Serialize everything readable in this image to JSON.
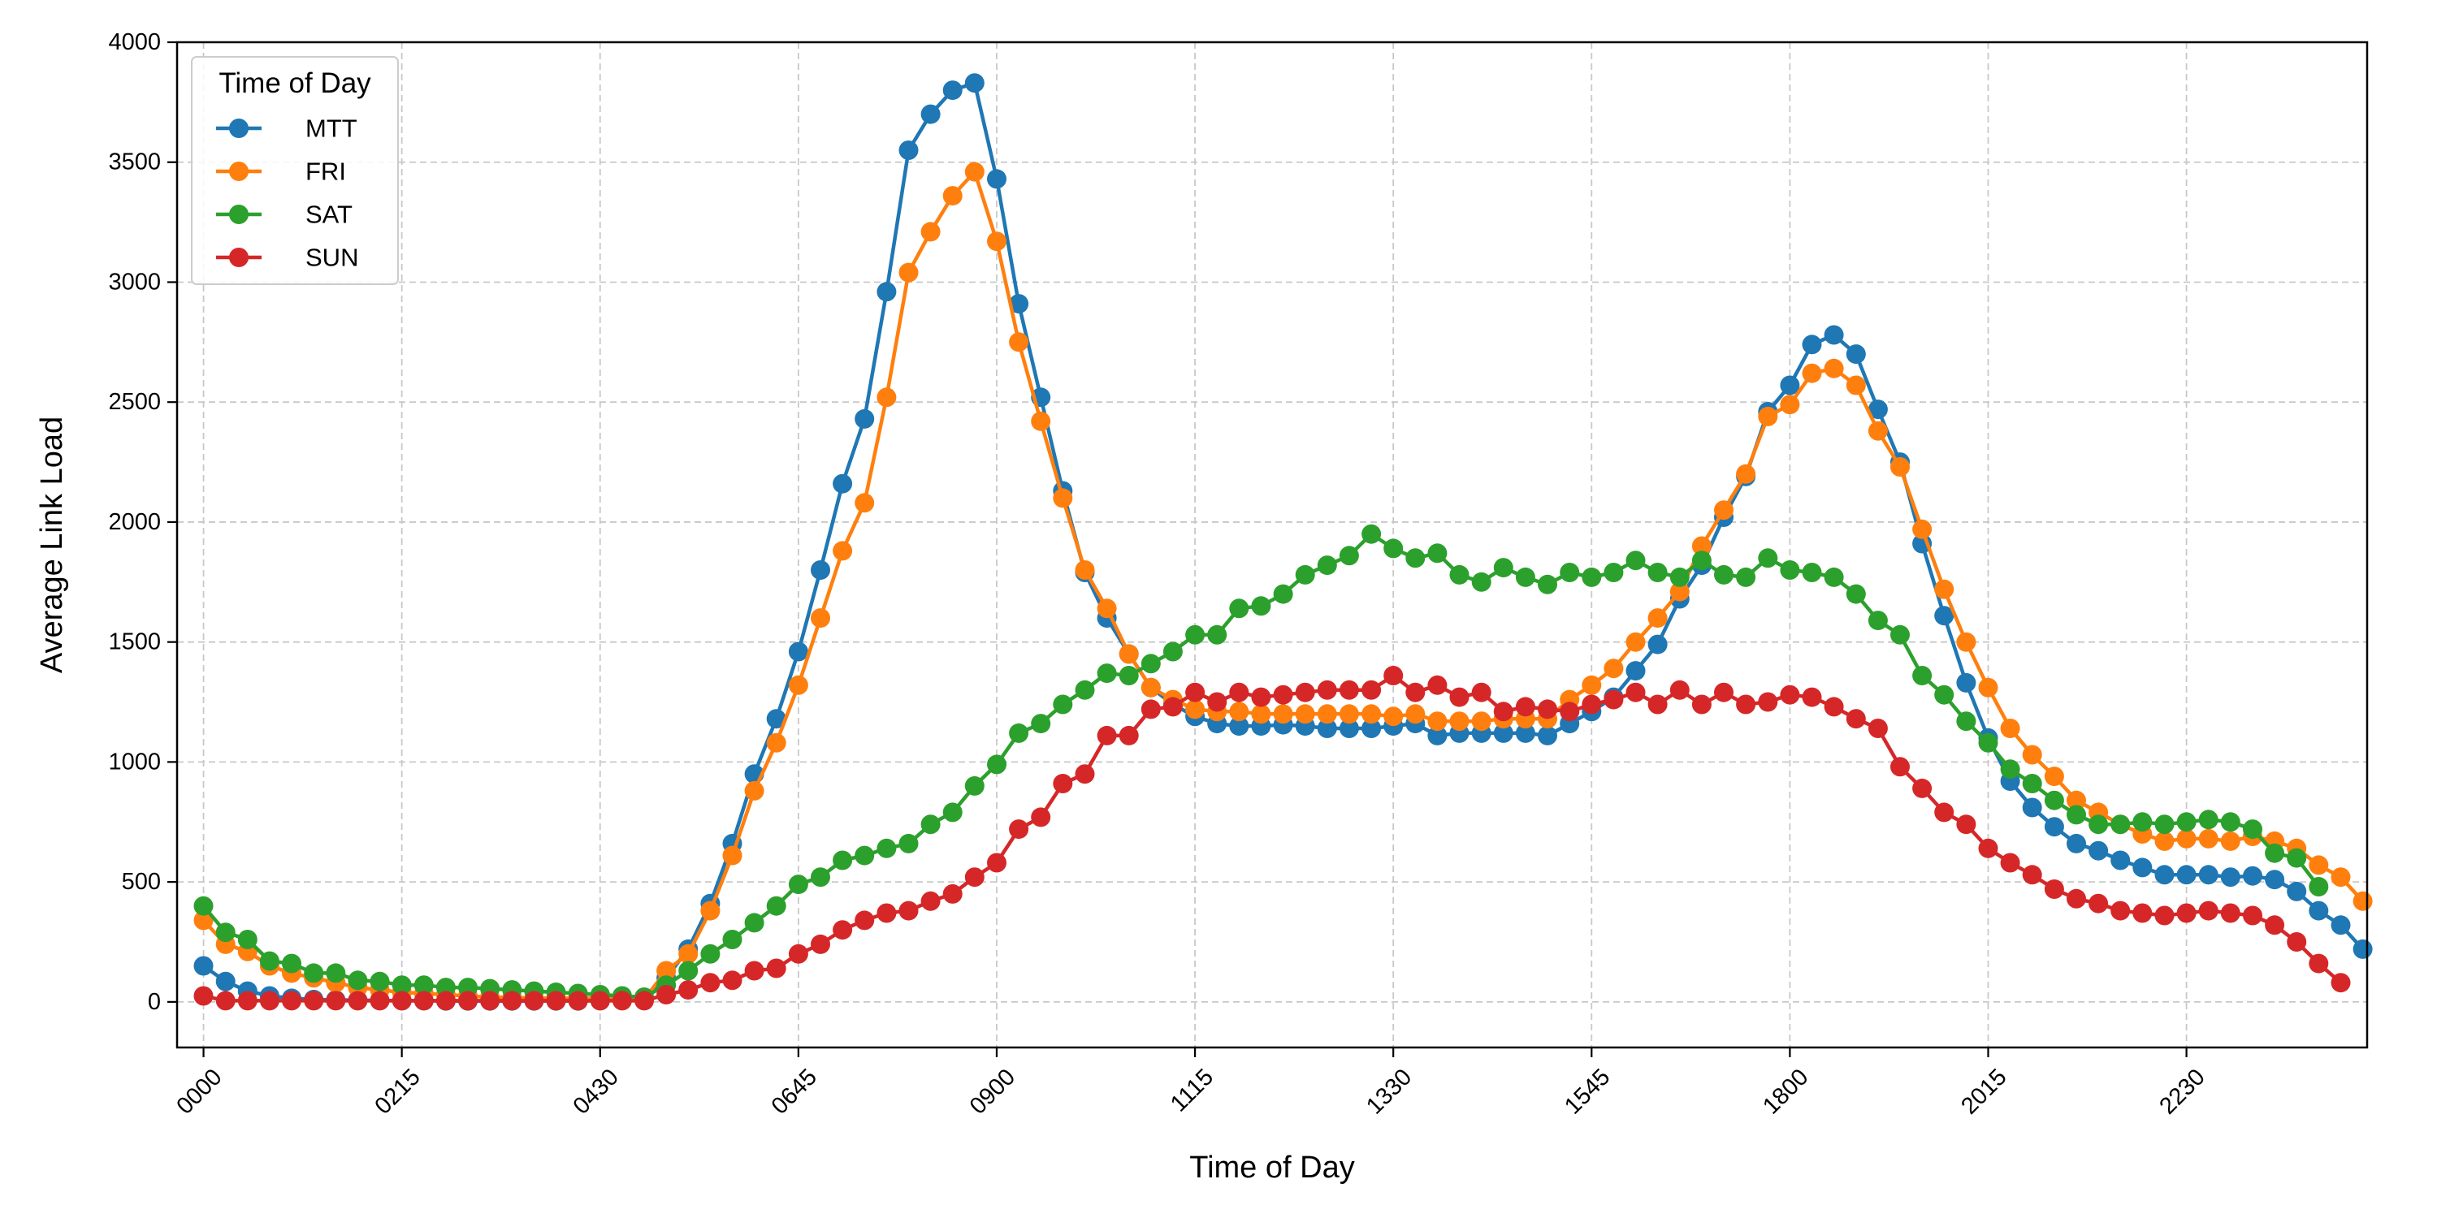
{
  "chart_data": {
    "type": "line",
    "title": "",
    "xlabel": "Time of Day",
    "ylabel": "Average Link Load",
    "x_interval_minutes": 15,
    "x_ticks": [
      "0000",
      "0215",
      "0430",
      "0645",
      "0900",
      "1115",
      "1330",
      "1545",
      "1800",
      "2015",
      "2230"
    ],
    "y_ticks": [
      0,
      500,
      1000,
      1500,
      2000,
      2500,
      3000,
      3500,
      4000
    ],
    "xlim": [
      -1.2,
      98.2
    ],
    "ylim": [
      -190,
      4000
    ],
    "grid": true,
    "legend": {
      "title": "Time of Day",
      "position": "top-left"
    },
    "series": [
      {
        "name": "MTT",
        "color": "#1f77b4",
        "values": [
          150,
          85,
          45,
          25,
          15,
          10,
          8,
          7,
          6,
          5,
          5,
          4,
          4,
          4,
          4,
          4,
          4,
          4,
          5,
          8,
          15,
          100,
          220,
          410,
          660,
          950,
          1180,
          1460,
          1800,
          2160,
          2430,
          2960,
          3550,
          3700,
          3800,
          3830,
          3430,
          2910,
          2520,
          2130,
          1790,
          1600,
          1450,
          1310,
          1240,
          1190,
          1160,
          1150,
          1150,
          1155,
          1150,
          1140,
          1140,
          1140,
          1150,
          1160,
          1110,
          1120,
          1120,
          1120,
          1120,
          1110,
          1160,
          1210,
          1270,
          1380,
          1490,
          1680,
          1820,
          2020,
          2190,
          2460,
          2570,
          2740,
          2780,
          2700,
          2470,
          2250,
          1910,
          1610,
          1330,
          1100,
          920,
          810,
          730,
          660,
          630,
          590,
          560,
          530,
          530,
          530,
          520,
          525,
          510,
          460,
          380,
          320,
          220
        ]
      },
      {
        "name": "FRI",
        "color": "#ff7f0e",
        "values": [
          340,
          240,
          210,
          150,
          120,
          100,
          80,
          60,
          50,
          40,
          35,
          30,
          25,
          20,
          18,
          16,
          15,
          15,
          15,
          12,
          10,
          130,
          200,
          380,
          610,
          880,
          1080,
          1320,
          1600,
          1880,
          2080,
          2520,
          3040,
          3210,
          3360,
          3460,
          3170,
          2750,
          2420,
          2100,
          1800,
          1640,
          1450,
          1310,
          1260,
          1220,
          1210,
          1210,
          1200,
          1200,
          1200,
          1200,
          1200,
          1200,
          1190,
          1200,
          1170,
          1170,
          1170,
          1180,
          1180,
          1180,
          1260,
          1320,
          1390,
          1500,
          1600,
          1710,
          1900,
          2050,
          2200,
          2440,
          2490,
          2620,
          2640,
          2570,
          2380,
          2230,
          1970,
          1720,
          1500,
          1310,
          1140,
          1030,
          940,
          840,
          790,
          740,
          700,
          670,
          680,
          680,
          670,
          690,
          670,
          640,
          570,
          520,
          420
        ]
      },
      {
        "name": "SAT",
        "color": "#2ca02c",
        "values": [
          400,
          290,
          260,
          170,
          160,
          120,
          120,
          90,
          85,
          70,
          70,
          60,
          60,
          55,
          50,
          45,
          40,
          35,
          30,
          25,
          20,
          70,
          130,
          200,
          260,
          330,
          400,
          490,
          520,
          590,
          610,
          640,
          660,
          740,
          790,
          900,
          990,
          1120,
          1160,
          1240,
          1300,
          1370,
          1360,
          1410,
          1460,
          1530,
          1530,
          1640,
          1650,
          1700,
          1780,
          1820,
          1860,
          1950,
          1890,
          1850,
          1870,
          1780,
          1750,
          1810,
          1770,
          1740,
          1790,
          1770,
          1790,
          1840,
          1790,
          1770,
          1840,
          1780,
          1770,
          1850,
          1800,
          1790,
          1770,
          1700,
          1590,
          1530,
          1360,
          1280,
          1170,
          1080,
          970,
          910,
          840,
          780,
          740,
          740,
          750,
          740,
          750,
          760,
          750,
          720,
          620,
          600,
          480
        ]
      },
      {
        "name": "SUN",
        "color": "#d62728",
        "values": [
          25,
          5,
          5,
          5,
          5,
          5,
          5,
          5,
          5,
          5,
          5,
          5,
          5,
          5,
          5,
          5,
          5,
          5,
          5,
          5,
          5,
          30,
          50,
          80,
          90,
          130,
          140,
          200,
          240,
          300,
          340,
          370,
          380,
          420,
          450,
          520,
          580,
          720,
          770,
          910,
          950,
          1110,
          1110,
          1220,
          1230,
          1290,
          1250,
          1290,
          1270,
          1280,
          1290,
          1300,
          1300,
          1300,
          1360,
          1290,
          1320,
          1270,
          1290,
          1210,
          1230,
          1220,
          1210,
          1240,
          1260,
          1290,
          1240,
          1300,
          1240,
          1290,
          1240,
          1250,
          1280,
          1270,
          1230,
          1180,
          1140,
          980,
          890,
          790,
          740,
          640,
          580,
          530,
          470,
          430,
          410,
          380,
          370,
          360,
          370,
          380,
          370,
          360,
          320,
          250,
          160,
          80
        ]
      }
    ]
  }
}
